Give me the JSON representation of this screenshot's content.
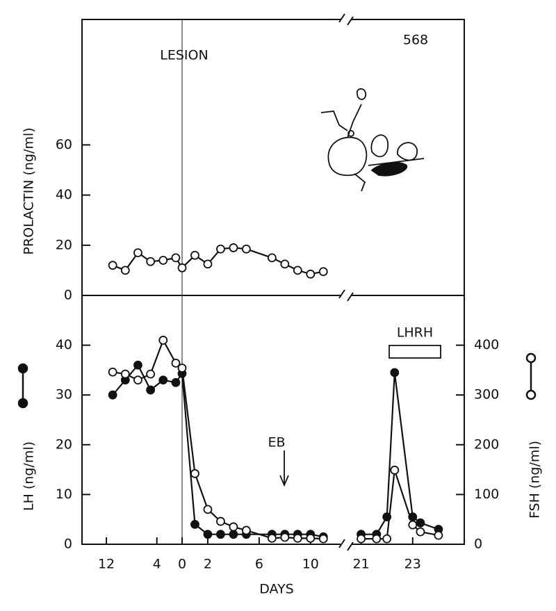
{
  "chart_data": [
    {
      "type": "line",
      "ylabel": "PROLACTIN (ng/ml)",
      "annotations": [
        "LESION",
        "568"
      ],
      "xsegments": [
        [
          -13,
          0
        ],
        [
          0,
          12.5
        ],
        [
          20.5,
          25
        ]
      ],
      "ylim": [
        0,
        110
      ],
      "yticks": [
        0,
        20,
        40,
        60
      ],
      "x": [
        -11,
        -9,
        -7,
        -5,
        -3,
        -1,
        0,
        1,
        2,
        3,
        4,
        5,
        7,
        8,
        9,
        10,
        11
      ],
      "series": [
        {
          "color": "#111111",
          "marker": "open",
          "values": [
            12,
            10,
            17,
            13.5,
            14,
            15,
            11,
            16,
            12.5,
            18.5,
            19,
            18.5,
            15,
            12.5,
            10,
            8.5,
            9.5
          ]
        }
      ]
    },
    {
      "type": "line",
      "ylabel": "LH (ng/ml)",
      "y2label": "FSH (ng/ml)",
      "xlabel": "DAYS",
      "annotations": [
        "EB",
        "LHRH"
      ],
      "xsegments": [
        [
          -13,
          0
        ],
        [
          0,
          12.5
        ],
        [
          20.5,
          25
        ]
      ],
      "xticks": [
        {
          "value": -12,
          "label": "12"
        },
        {
          "value": -4,
          "label": "4"
        },
        0,
        2,
        6,
        10,
        21,
        23
      ],
      "ylim": [
        0,
        50
      ],
      "yticks": [
        0,
        10,
        20,
        30,
        40
      ],
      "y2lim": [
        0,
        500
      ],
      "y2ticks": [
        0,
        100,
        200,
        300,
        400
      ],
      "x": [
        -11,
        -9,
        -7,
        -5,
        -3,
        -1,
        0,
        1,
        2,
        3,
        4,
        5,
        7,
        8,
        9,
        10,
        11,
        21,
        21.6,
        22,
        22.3,
        23,
        23.3,
        24
      ],
      "series": [
        {
          "color": "#111111",
          "marker": "filled",
          "values": [
            30,
            33,
            36,
            31,
            33,
            32.5,
            34.3,
            4,
            2,
            2,
            2,
            2,
            2,
            2,
            2,
            2,
            1.5,
            2,
            2,
            5.5,
            34.5,
            5.5,
            4.3,
            3
          ]
        },
        {
          "color": "#111111",
          "marker": "open",
          "axis": "y2",
          "values": [
            346,
            342,
            330,
            342,
            410,
            364,
            354,
            142,
            70,
            46,
            35,
            28,
            12,
            14,
            12,
            12,
            11,
            11,
            11,
            11,
            149,
            39,
            25,
            18
          ]
        }
      ]
    }
  ]
}
